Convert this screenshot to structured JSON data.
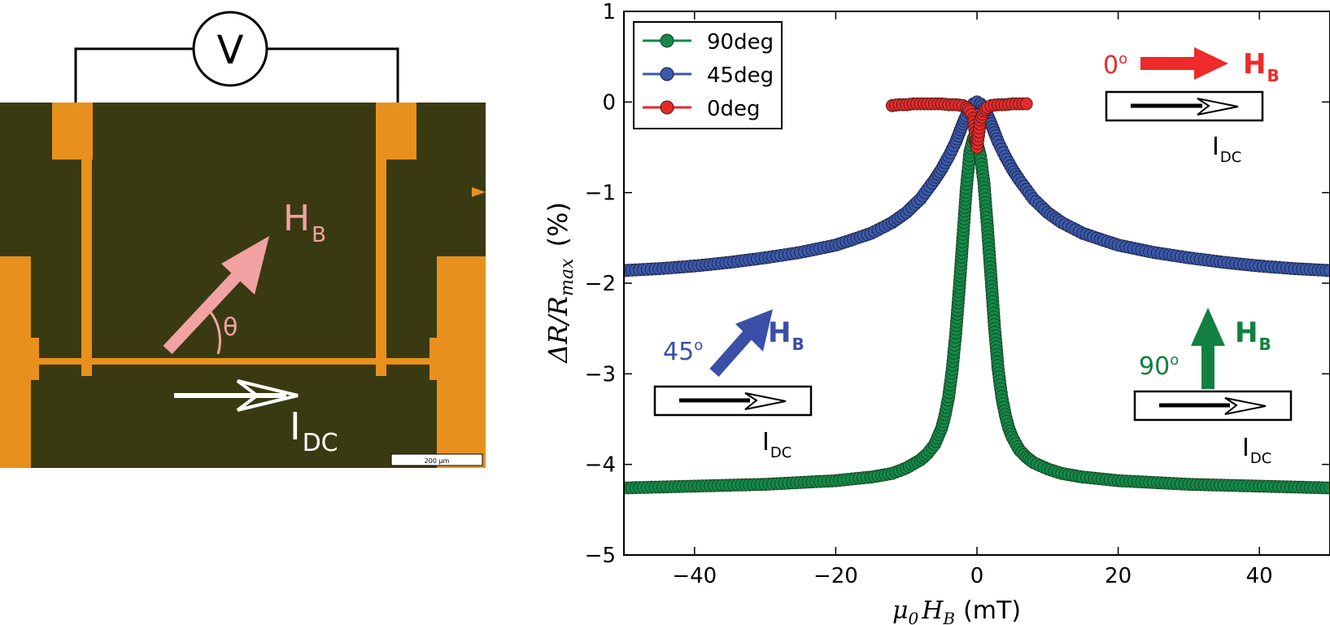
{
  "micrograph": {
    "voltmeter_label": "V",
    "field_label": "H",
    "field_subscript": "B",
    "angle_label": "θ",
    "current_label": "I",
    "current_subscript": "DC",
    "scale_bar_label": "200 µm",
    "colors": {
      "substrate": "#3a3a12",
      "gold": "#e8901e",
      "field_arrow": "#f2a2a2"
    }
  },
  "insets": {
    "deg0": {
      "angle": "0",
      "field": "H",
      "field_sub": "B",
      "current": "I",
      "current_sub": "DC",
      "color": "#ee2a2a"
    },
    "deg45": {
      "angle": "45",
      "field": "H",
      "field_sub": "B",
      "current": "I",
      "current_sub": "DC",
      "color": "#3b4fa8"
    },
    "deg90": {
      "angle": "90",
      "field": "H",
      "field_sub": "B",
      "current": "I",
      "current_sub": "DC",
      "color": "#118040"
    },
    "degree_symbol": "o"
  },
  "chart_data": {
    "type": "scatter",
    "title": "",
    "xlabel_math": "μ",
    "xlabel_math_sub": "0",
    "xlabel_var": "H",
    "xlabel_var_sub": "B",
    "xlabel_unit": "(mT)",
    "ylabel_math": "ΔR/R",
    "ylabel_math_sub": "max",
    "ylabel_unit": "(%)",
    "xlim": [
      -50,
      50
    ],
    "ylim": [
      -5,
      1
    ],
    "xticks": [
      -40,
      -20,
      0,
      20,
      40
    ],
    "xtick_labels": [
      "−40",
      "−20",
      "0",
      "20",
      "40"
    ],
    "yticks": [
      -5,
      -4,
      -3,
      -2,
      -1,
      0,
      1
    ],
    "ytick_labels": [
      "−5",
      "−4",
      "−3",
      "−2",
      "−1",
      "0",
      "1"
    ],
    "grid": false,
    "legend_position": "top-left",
    "series": [
      {
        "name": "90deg",
        "color": "#118a4a",
        "x": [
          -50,
          -45,
          -40,
          -35,
          -30,
          -25,
          -20,
          -15,
          -12,
          -10,
          -8,
          -7,
          -6,
          -5,
          -4.5,
          -4,
          -3.5,
          -3,
          -2.5,
          -2,
          -1.5,
          -1,
          -0.5,
          0,
          0.5,
          1,
          1.5,
          2,
          2.5,
          3,
          3.5,
          4,
          4.5,
          5,
          6,
          7,
          8,
          10,
          12,
          15,
          20,
          25,
          30,
          35,
          40,
          45,
          50
        ],
        "y": [
          -4.26,
          -4.25,
          -4.24,
          -4.23,
          -4.22,
          -4.2,
          -4.18,
          -4.14,
          -4.1,
          -4.04,
          -3.95,
          -3.88,
          -3.78,
          -3.6,
          -3.45,
          -3.25,
          -2.95,
          -2.55,
          -2.05,
          -1.5,
          -0.95,
          -0.55,
          -0.4,
          -0.45,
          -0.6,
          -0.9,
          -1.4,
          -1.95,
          -2.5,
          -2.95,
          -3.25,
          -3.45,
          -3.6,
          -3.7,
          -3.84,
          -3.92,
          -3.98,
          -4.05,
          -4.1,
          -4.14,
          -4.18,
          -4.2,
          -4.22,
          -4.23,
          -4.24,
          -4.25,
          -4.26
        ]
      },
      {
        "name": "45deg",
        "color": "#3a5aaa",
        "x": [
          -50,
          -45,
          -40,
          -35,
          -30,
          -25,
          -20,
          -15,
          -12,
          -10,
          -8,
          -6,
          -5,
          -4,
          -3,
          -2.5,
          -2,
          -1.5,
          -1,
          -0.5,
          0,
          0.5,
          1,
          1.5,
          2,
          2.5,
          3,
          4,
          5,
          6,
          8,
          10,
          12,
          15,
          20,
          25,
          30,
          35,
          40,
          45,
          50
        ],
        "y": [
          -1.86,
          -1.84,
          -1.81,
          -1.77,
          -1.72,
          -1.66,
          -1.58,
          -1.45,
          -1.33,
          -1.22,
          -1.07,
          -0.86,
          -0.74,
          -0.6,
          -0.44,
          -0.34,
          -0.24,
          -0.15,
          -0.07,
          -0.02,
          0,
          -0.02,
          -0.07,
          -0.15,
          -0.24,
          -0.34,
          -0.44,
          -0.6,
          -0.74,
          -0.86,
          -1.07,
          -1.22,
          -1.33,
          -1.45,
          -1.58,
          -1.66,
          -1.72,
          -1.77,
          -1.81,
          -1.84,
          -1.86
        ]
      },
      {
        "name": "0deg",
        "color": "#e62a2a",
        "x": [
          -12,
          -11,
          -10,
          -9,
          -8,
          -7,
          -6,
          -5,
          -4,
          -3,
          -2,
          -1.5,
          -1,
          -0.5,
          0,
          0.5,
          1,
          1.5,
          2,
          3,
          4,
          5,
          6,
          7
        ],
        "y": [
          -0.04,
          -0.03,
          -0.03,
          -0.02,
          -0.02,
          -0.02,
          -0.02,
          -0.02,
          -0.03,
          -0.03,
          -0.04,
          -0.06,
          -0.1,
          -0.18,
          -0.5,
          -0.2,
          -0.1,
          -0.06,
          -0.04,
          -0.03,
          -0.03,
          -0.02,
          -0.02,
          -0.02
        ]
      }
    ]
  }
}
